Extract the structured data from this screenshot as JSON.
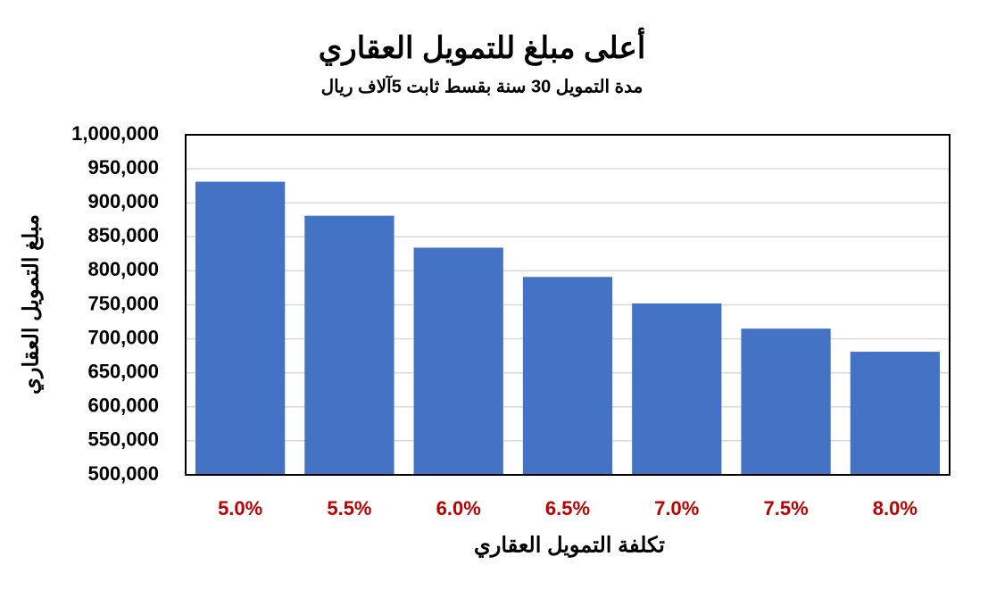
{
  "chart_data": {
    "type": "bar",
    "title": "أعلى مبلغ للتمويل العقاري",
    "subtitle": "مدة التمويل 30 سنة بقسط ثابت 5آلاف ريال",
    "x_label": "تكلفة التمويل العقاري",
    "y_label": "مبلغ التمويل العقاري",
    "categories": [
      "5.0%",
      "5.5%",
      "6.0%",
      "6.5%",
      "7.0%",
      "7.5%",
      "8.0%"
    ],
    "values": [
      931000,
      881000,
      834000,
      791000,
      752000,
      715000,
      681000
    ],
    "color": "#4472c4",
    "category_color": "#c00000",
    "ylim": [
      500000,
      1000000
    ],
    "yticks": [
      {
        "value": 500000,
        "label": "500,000"
      },
      {
        "value": 550000,
        "label": "550,000"
      },
      {
        "value": 600000,
        "label": "600,000"
      },
      {
        "value": 650000,
        "label": "650,000"
      },
      {
        "value": 700000,
        "label": "700,000"
      },
      {
        "value": 750000,
        "label": "750,000"
      },
      {
        "value": 800000,
        "label": "800,000"
      },
      {
        "value": 850000,
        "label": "850,000"
      },
      {
        "value": 900000,
        "label": "900,000"
      },
      {
        "value": 950000,
        "label": "950,000"
      },
      {
        "value": 1000000,
        "label": "1,000,000"
      }
    ],
    "grid": true
  }
}
